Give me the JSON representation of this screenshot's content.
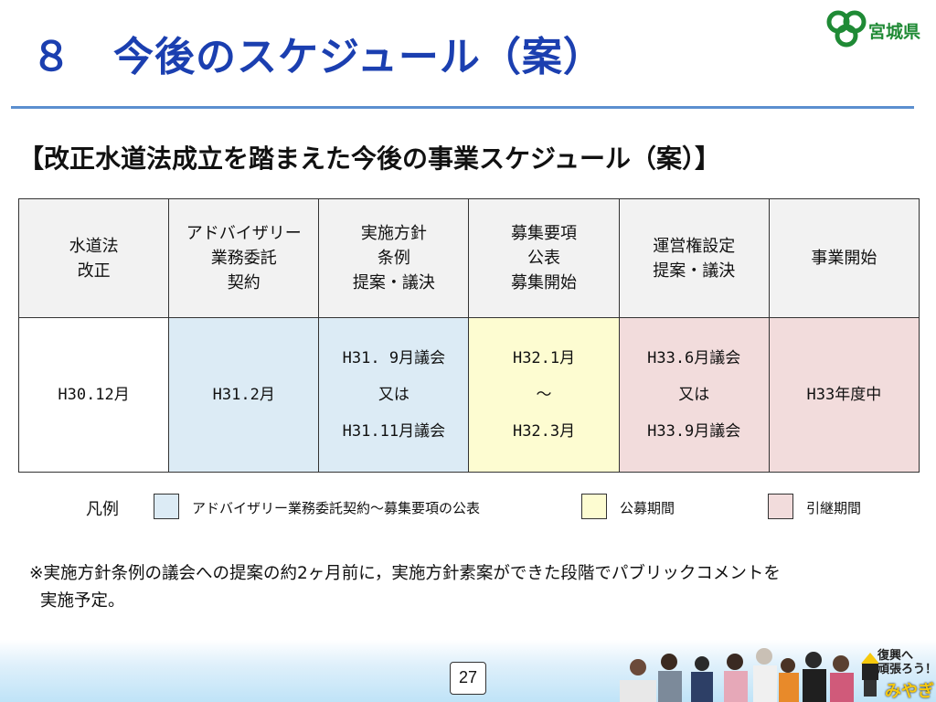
{
  "header": {
    "title": "８　今後のスケジュール（案）",
    "logo_text": "宮城県"
  },
  "subtitle": "【改正水道法成立を踏まえた今後の事業スケジュール（案）】",
  "schedule": {
    "headers": [
      [
        "水道法",
        "改正"
      ],
      [
        "アドバイザリー",
        "業務委託",
        "契約"
      ],
      [
        "実施方針",
        "条例",
        "提案・議決"
      ],
      [
        "募集要項",
        "公表",
        "募集開始"
      ],
      [
        "運営権設定",
        "提案・議決"
      ],
      [
        "事業開始"
      ]
    ],
    "values": [
      [
        "H30.12月"
      ],
      [
        "H31.2月"
      ],
      [
        "H31. 9月議会",
        "又は",
        "H31.11月議会"
      ],
      [
        "H32.1月",
        "～",
        "H32.3月"
      ],
      [
        "H33.6月議会",
        "又は",
        "H33.9月議会"
      ],
      [
        "H33年度中"
      ]
    ]
  },
  "legend": {
    "title": "凡例",
    "items": [
      {
        "label": "アドバイザリー業務委託契約～募集要項の公表",
        "color": "#dcebf5"
      },
      {
        "label": "公募期間",
        "color": "#fdfcd1"
      },
      {
        "label": "引継期間",
        "color": "#f2dcdc"
      }
    ]
  },
  "note": {
    "line1": "※実施方針条例の議会への提案の約2ヶ月前に，実施方針素案ができた段階でパブリックコメントを",
    "line2": "実施予定。"
  },
  "footer": {
    "page_number": "27",
    "slogan_line1": "復興へ",
    "slogan_line2": "頑張ろう！",
    "slogan_brand": "みやぎ"
  },
  "colors": {
    "title": "#1b3fb0",
    "rule": "#5b8fcf",
    "header_bg": "#f2f2f2",
    "logo_green": "#1f8a35"
  }
}
